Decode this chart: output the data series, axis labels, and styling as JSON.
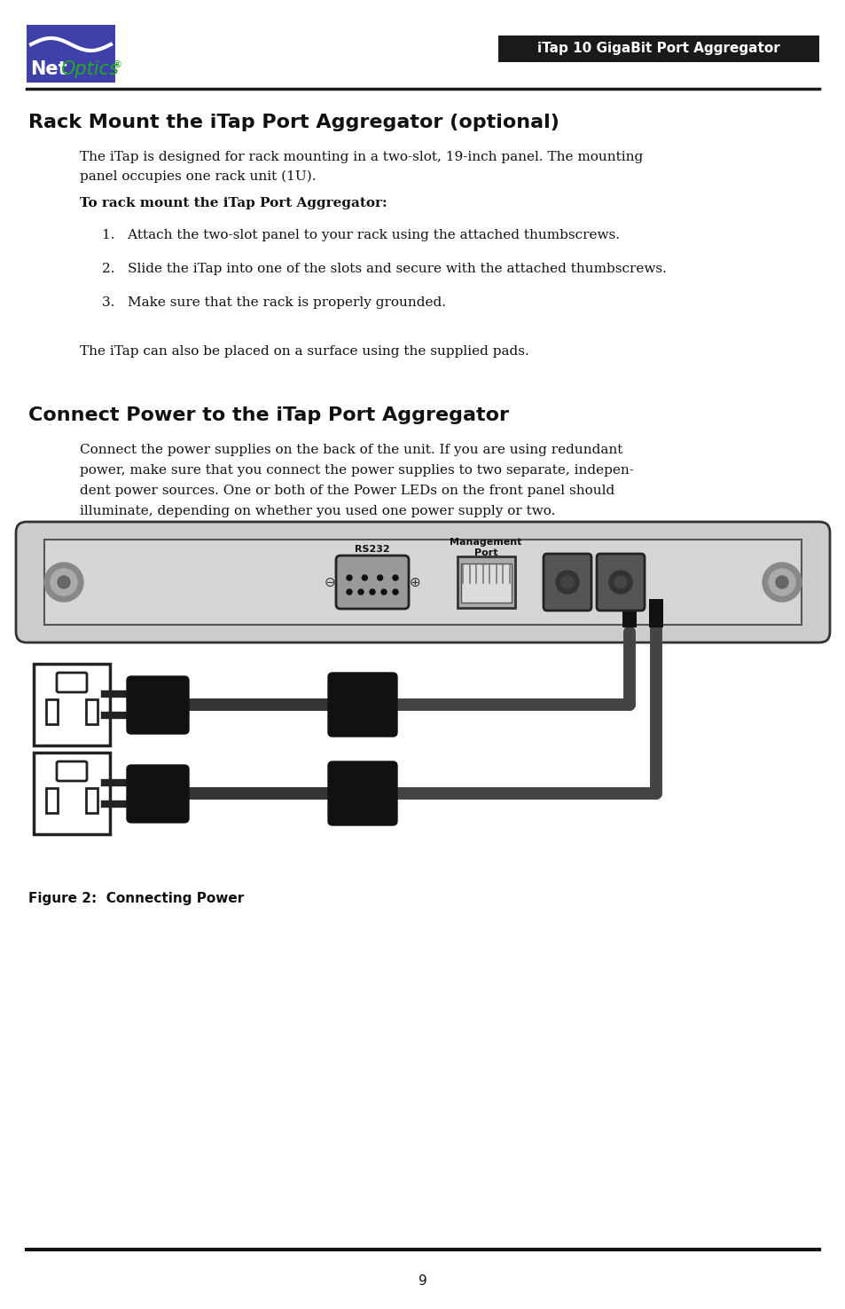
{
  "page_bg": "#ffffff",
  "header_bar_color": "#1a1a1a",
  "header_text": "iTap 10 GigaBit Port Aggregator",
  "header_text_color": "#ffffff",
  "logo_box_color": "#4040aa",
  "logo_net_color": "#ffffff",
  "logo_optics_color": "#22aa22",
  "title1": "Rack Mount the iTap Port Aggregator (optional)",
  "title2": "Connect Power to the iTap Port Aggregator",
  "body_text_color": "#111111",
  "footer_line_color": "#111111",
  "page_number": "9",
  "figure_caption": "Figure 2:  Connecting Power",
  "body1_line1": "The iTap is designed for rack mounting in a two-slot, 19-inch panel. The mounting",
  "body1_line2": "panel occupies one rack unit (1U).",
  "subhead": "To rack mount the iTap Port Aggregator:",
  "item1": "1.   Attach the two-slot panel to your rack using the attached thumbscrews.",
  "item2": "2.   Slide the iTap into one of the slots and secure with the attached thumbscrews.",
  "item3": "3.   Make sure that the rack is properly grounded.",
  "body1_last": "The iTap can also be placed on a surface using the supplied pads.",
  "body2_line1": "Connect the power supplies on the back of the unit. If you are using redundant",
  "body2_line2": "power, make sure that you connect the power supplies to two separate, indepen-",
  "body2_line3": "dent power sources. One or both of the Power LEDs on the front panel should",
  "body2_line4": "illuminate, depending on whether you used one power supply or two.",
  "rs232_label": "RS232",
  "mgmt_label1": "Management",
  "mgmt_label2": "Port"
}
